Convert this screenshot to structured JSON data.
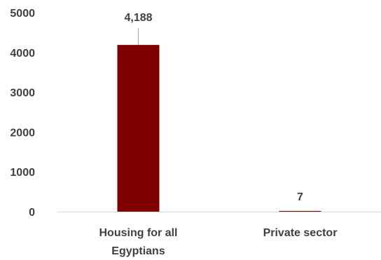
{
  "chart_data": {
    "type": "bar",
    "categories": [
      "Housing for all Egyptians",
      "Private sector"
    ],
    "category_label_lines": [
      [
        "Housing for all",
        "Egyptians"
      ],
      [
        "Private sector"
      ]
    ],
    "values": [
      4188,
      7
    ],
    "data_labels": [
      "4,188",
      "7"
    ],
    "ylim": [
      0,
      5000
    ],
    "yticks": [
      0,
      1000,
      2000,
      3000,
      4000,
      5000
    ],
    "ytick_labels": [
      "0",
      "1000",
      "2000",
      "3000",
      "4000",
      "5000"
    ],
    "title": "",
    "xlabel": "",
    "ylabel": "",
    "grid": false,
    "legend": "none",
    "bar_color": "#7f0000",
    "text_color": "#404040",
    "axis_color": "#d9d9d9"
  }
}
